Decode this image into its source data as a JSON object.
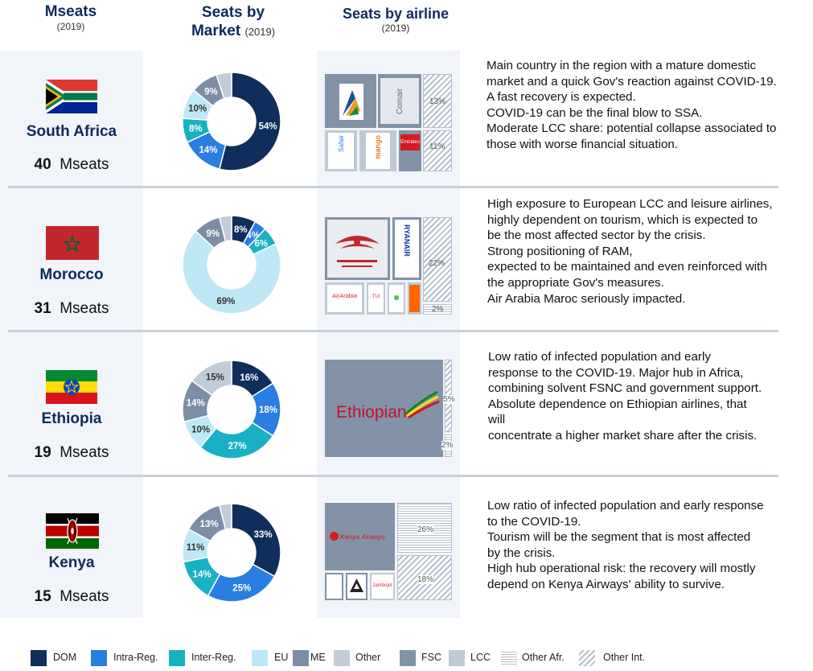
{
  "headers": {
    "mseats": {
      "title": "Mseats",
      "sub": "(2019)"
    },
    "market": {
      "title_line1": "Seats by",
      "title_line2": "Market",
      "sub": "(2019)"
    },
    "airline": {
      "title": "Seats by airline",
      "sub": "(2019)"
    }
  },
  "colors": {
    "DOM": "#0f2e5c",
    "Intra-Reg.": "#2a7de1",
    "Inter-Reg.": "#18b1c4",
    "EU": "#bfe8f7",
    "ME": "#7b8ea6",
    "Other": "#c2ccd8",
    "FSC": "#8293a8",
    "LCC": "#c0cad6",
    "bg": "#f1f4f8",
    "header": "#102a5c"
  },
  "legend": [
    {
      "label": "DOM",
      "color": "#0f2e5c",
      "pattern": "solid"
    },
    {
      "label": "Intra-Reg.",
      "color": "#2a7de1",
      "pattern": "solid"
    },
    {
      "label": "Inter-Reg.",
      "color": "#18b1c4",
      "pattern": "solid"
    },
    {
      "label": "EU",
      "color": "#bfe8f7",
      "pattern": "solid"
    },
    {
      "label": "ME",
      "color": "#7b8ea6",
      "pattern": "solid"
    },
    {
      "label": "Other",
      "color": "#c2ccd8",
      "pattern": "solid"
    },
    {
      "label": "FSC",
      "color": "#8293a8",
      "pattern": "solid"
    },
    {
      "label": "LCC",
      "color": "#c0cad6",
      "pattern": "solid"
    },
    {
      "label": "Other Afr.",
      "color": "#b5bfcc",
      "pattern": "horizontal"
    },
    {
      "label": "Other Int.",
      "color": "#b5bfcc",
      "pattern": "diagonal"
    }
  ],
  "chart_data": [
    {
      "type": "pie",
      "country": "South Africa",
      "mseats_value": "40",
      "mseats_unit": "Mseats",
      "segments": [
        {
          "name": "DOM",
          "value": 54,
          "label": "54%"
        },
        {
          "name": "Intra-Reg.",
          "value": 14,
          "label": "14%"
        },
        {
          "name": "Inter-Reg.",
          "value": 8,
          "label": "8%"
        },
        {
          "name": "EU",
          "value": 10,
          "label": "10%"
        },
        {
          "name": "ME",
          "value": 9,
          "label": "9%"
        },
        {
          "name": "Other",
          "value": 5,
          "label": ""
        }
      ],
      "airline_share_labels": [
        "13%",
        "11%"
      ],
      "airlines": [
        "South African Airways",
        "Comair",
        "Safair",
        "Mango",
        "Emirates"
      ],
      "description": [
        "Main country in the region with a mature domestic",
        "market and a quick Gov's reaction against COVID-19.",
        "A fast recovery is expected.",
        "COVID-19 can be the final blow to SSA.",
        "Moderate LCC share: potential collapse associated to",
        "those with worse financial situation."
      ]
    },
    {
      "type": "pie",
      "country": "Morocco",
      "mseats_value": "31",
      "mseats_unit": "Mseats",
      "segments": [
        {
          "name": "DOM",
          "value": 8,
          "label": "8%"
        },
        {
          "name": "Intra-Reg.",
          "value": 4,
          "label": "4%"
        },
        {
          "name": "Inter-Reg.",
          "value": 6,
          "label": "6%"
        },
        {
          "name": "EU",
          "value": 69,
          "label": "69%"
        },
        {
          "name": "ME",
          "value": 9,
          "label": "9%"
        },
        {
          "name": "Other",
          "value": 4,
          "label": ""
        }
      ],
      "airline_share_labels": [
        "22%",
        "2%"
      ],
      "airlines": [
        "Royal Air Maroc",
        "RYANAIR",
        "AirArabia",
        "TUI fly",
        "Transavia",
        "easyJet"
      ],
      "description": [
        "High exposure to European LCC and leisure airlines,",
        "highly dependent on tourism, which is expected to",
        "be the most affected sector by the crisis.",
        "Strong positioning of RAM,",
        "expected to be maintained and even reinforced with",
        "the appropriate Gov's measures.",
        "Air Arabia Maroc seriously impacted."
      ]
    },
    {
      "type": "pie",
      "country": "Ethiopia",
      "mseats_value": "19",
      "mseats_unit": "Mseats",
      "segments": [
        {
          "name": "DOM",
          "value": 16,
          "label": "16%"
        },
        {
          "name": "Intra-Reg.",
          "value": 18,
          "label": "18%"
        },
        {
          "name": "Inter-Reg.",
          "value": 27,
          "label": "27%"
        },
        {
          "name": "EU",
          "value": 10,
          "label": "10%"
        },
        {
          "name": "ME",
          "value": 14,
          "label": "14%"
        },
        {
          "name": "Other",
          "value": 15,
          "label": "15%"
        }
      ],
      "airline_share_labels": [
        "5%",
        "2%"
      ],
      "airlines": [
        "Ethiopian"
      ],
      "description": [
        "Low ratio of infected population and early",
        "response to the COVID-19. Major hub in Africa,",
        "combining solvent FSNC and  government support.",
        "Absolute dependence on Ethiopian airlines, that",
        "will",
        "concentrate a higher market share after the crisis."
      ]
    },
    {
      "type": "pie",
      "country": "Kenya",
      "mseats_value": "15",
      "mseats_unit": "Mseats",
      "segments": [
        {
          "name": "DOM",
          "value": 33,
          "label": "33%"
        },
        {
          "name": "Intra-Reg.",
          "value": 25,
          "label": "25%"
        },
        {
          "name": "Inter-Reg.",
          "value": 14,
          "label": "14%"
        },
        {
          "name": "EU",
          "value": 11,
          "label": "11%"
        },
        {
          "name": "ME",
          "value": 13,
          "label": "13%"
        },
        {
          "name": "Other",
          "value": 4,
          "label": ""
        }
      ],
      "airline_share_labels": [
        "26%",
        "18%"
      ],
      "airlines": [
        "Kenya Airways",
        "Jambojet"
      ],
      "description": [
        "Low ratio of infected population and early response",
        "to the COVID-19.",
        "Tourism will be the segment that is most affected",
        "by the crisis.",
        "High hub operational risk: the recovery will mostly",
        "depend on Kenya Airways' ability to survive."
      ]
    }
  ]
}
